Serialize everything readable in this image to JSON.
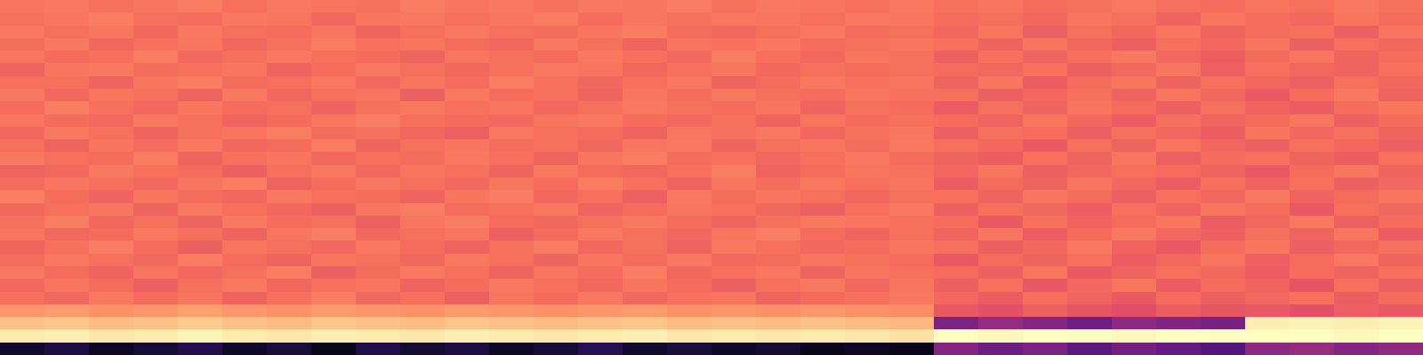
{
  "chart_data": {
    "type": "heatmap",
    "color": "magma",
    "tick_labels": false,
    "xlim": [
      -0.5,
      31.5
    ],
    "ylim": [
      -0.5,
      27.5
    ],
    "zlim": [
      0,
      1
    ],
    "z": [
      [
        0.08,
        0.12,
        0.06,
        0.1,
        0.14,
        0.07,
        0.11,
        0.05,
        0.13,
        0.09,
        0.12,
        0.06,
        0.1,
        0.15,
        0.08,
        0.11,
        0.07,
        0.09,
        0.05,
        0.06,
        0.04,
        0.38,
        0.32,
        0.36,
        0.28,
        0.34,
        0.3,
        0.26,
        0.4,
        0.42,
        0.38,
        0.41
      ],
      [
        0.96,
        0.97,
        0.95,
        0.96,
        0.98,
        0.96,
        0.95,
        0.97,
        0.96,
        0.95,
        0.97,
        0.96,
        0.95,
        0.96,
        0.97,
        0.95,
        0.96,
        0.95,
        0.96,
        0.95,
        0.94,
        1.0,
        0.99,
        1.0,
        1.0,
        0.99,
        1.0,
        1.0,
        1.0,
        1.0,
        0.99,
        1.0
      ],
      [
        0.87,
        0.88,
        0.86,
        0.87,
        0.89,
        0.87,
        0.86,
        0.88,
        0.87,
        0.86,
        0.88,
        0.87,
        0.86,
        0.87,
        0.88,
        0.86,
        0.87,
        0.86,
        0.87,
        0.86,
        0.85,
        0.36,
        0.42,
        0.38,
        0.33,
        0.4,
        0.37,
        0.35,
        0.97,
        0.98,
        0.97,
        0.98
      ],
      [
        0.78,
        0.79,
        0.77,
        0.78,
        0.8,
        0.78,
        0.77,
        0.79,
        0.78,
        0.77,
        0.79,
        0.78,
        0.77,
        0.78,
        0.79,
        0.77,
        0.78,
        0.77,
        0.78,
        0.77,
        0.76,
        0.64,
        0.62,
        0.66,
        0.63,
        0.61,
        0.65,
        0.63,
        0.64,
        0.62,
        0.66,
        0.64
      ],
      [
        0.7,
        0.68,
        0.72,
        0.69,
        0.71,
        0.67,
        0.7,
        0.73,
        0.68,
        0.7,
        0.66,
        0.71,
        0.69,
        0.72,
        0.68,
        0.7,
        0.71,
        0.67,
        0.69,
        0.7,
        0.72,
        0.68,
        0.65,
        0.7,
        0.67,
        0.64,
        0.69,
        0.66,
        0.68,
        0.7,
        0.65,
        0.69
      ],
      [
        0.68,
        0.71,
        0.69,
        0.66,
        0.7,
        0.72,
        0.68,
        0.7,
        0.71,
        0.67,
        0.69,
        0.72,
        0.7,
        0.68,
        0.71,
        0.69,
        0.66,
        0.7,
        0.72,
        0.68,
        0.71,
        0.66,
        0.7,
        0.64,
        0.68,
        0.71,
        0.65,
        0.69,
        0.67,
        0.63,
        0.7,
        0.66
      ],
      [
        0.72,
        0.69,
        0.67,
        0.71,
        0.68,
        0.7,
        0.73,
        0.66,
        0.69,
        0.72,
        0.7,
        0.67,
        0.71,
        0.69,
        0.73,
        0.68,
        0.7,
        0.72,
        0.67,
        0.71,
        0.7,
        0.69,
        0.66,
        0.71,
        0.64,
        0.67,
        0.7,
        0.68,
        0.65,
        0.69,
        0.67,
        0.7
      ],
      [
        0.69,
        0.72,
        0.7,
        0.68,
        0.73,
        0.69,
        0.67,
        0.71,
        0.7,
        0.68,
        0.72,
        0.7,
        0.67,
        0.71,
        0.69,
        0.72,
        0.68,
        0.69,
        0.71,
        0.7,
        0.69,
        0.64,
        0.69,
        0.67,
        0.7,
        0.65,
        0.68,
        0.71,
        0.66,
        0.69,
        0.72,
        0.67
      ],
      [
        0.67,
        0.7,
        0.73,
        0.69,
        0.66,
        0.71,
        0.7,
        0.68,
        0.72,
        0.69,
        0.67,
        0.7,
        0.73,
        0.68,
        0.7,
        0.67,
        0.72,
        0.7,
        0.68,
        0.69,
        0.71,
        0.7,
        0.66,
        0.68,
        0.72,
        0.67,
        0.64,
        0.69,
        0.71,
        0.66,
        0.68,
        0.7
      ],
      [
        0.71,
        0.68,
        0.69,
        0.72,
        0.7,
        0.67,
        0.71,
        0.73,
        0.68,
        0.7,
        0.71,
        0.66,
        0.69,
        0.72,
        0.7,
        0.68,
        0.71,
        0.73,
        0.69,
        0.67,
        0.7,
        0.67,
        0.71,
        0.65,
        0.69,
        0.72,
        0.68,
        0.66,
        0.7,
        0.67,
        0.71,
        0.65
      ],
      [
        0.7,
        0.73,
        0.68,
        0.7,
        0.67,
        0.72,
        0.69,
        0.7,
        0.66,
        0.71,
        0.73,
        0.69,
        0.68,
        0.7,
        0.72,
        0.69,
        0.67,
        0.7,
        0.72,
        0.71,
        0.7,
        0.69,
        0.64,
        0.7,
        0.67,
        0.69,
        0.71,
        0.65,
        0.68,
        0.72,
        0.66,
        0.69
      ],
      [
        0.68,
        0.7,
        0.71,
        0.67,
        0.72,
        0.7,
        0.68,
        0.66,
        0.71,
        0.73,
        0.69,
        0.7,
        0.72,
        0.67,
        0.69,
        0.71,
        0.7,
        0.68,
        0.66,
        0.7,
        0.72,
        0.66,
        0.7,
        0.68,
        0.65,
        0.7,
        0.67,
        0.71,
        0.69,
        0.64,
        0.7,
        0.68
      ],
      [
        0.73,
        0.69,
        0.67,
        0.71,
        0.69,
        0.68,
        0.72,
        0.7,
        0.69,
        0.67,
        0.71,
        0.73,
        0.68,
        0.7,
        0.66,
        0.72,
        0.69,
        0.71,
        0.7,
        0.68,
        0.7,
        0.7,
        0.67,
        0.71,
        0.69,
        0.66,
        0.7,
        0.68,
        0.72,
        0.67,
        0.69,
        0.71
      ],
      [
        0.69,
        0.71,
        0.7,
        0.68,
        0.71,
        0.73,
        0.67,
        0.69,
        0.72,
        0.7,
        0.68,
        0.71,
        0.69,
        0.73,
        0.7,
        0.67,
        0.71,
        0.69,
        0.72,
        0.7,
        0.71,
        0.65,
        0.69,
        0.67,
        0.71,
        0.68,
        0.65,
        0.7,
        0.67,
        0.7,
        0.66,
        0.68
      ],
      [
        0.67,
        0.68,
        0.72,
        0.7,
        0.69,
        0.66,
        0.7,
        0.72,
        0.68,
        0.71,
        0.7,
        0.67,
        0.72,
        0.69,
        0.68,
        0.7,
        0.73,
        0.67,
        0.69,
        0.71,
        0.7,
        0.68,
        0.71,
        0.66,
        0.68,
        0.7,
        0.69,
        0.67,
        0.64,
        0.69,
        0.71,
        0.67
      ],
      [
        0.72,
        0.7,
        0.69,
        0.73,
        0.67,
        0.7,
        0.71,
        0.68,
        0.7,
        0.69,
        0.72,
        0.7,
        0.67,
        0.71,
        0.73,
        0.69,
        0.7,
        0.68,
        0.7,
        0.72,
        0.69,
        0.67,
        0.65,
        0.7,
        0.67,
        0.71,
        0.66,
        0.69,
        0.7,
        0.67,
        0.65,
        0.7
      ],
      [
        0.7,
        0.67,
        0.71,
        0.69,
        0.72,
        0.68,
        0.69,
        0.73,
        0.67,
        0.7,
        0.71,
        0.69,
        0.7,
        0.68,
        0.71,
        0.72,
        0.67,
        0.7,
        0.71,
        0.69,
        0.72,
        0.7,
        0.68,
        0.64,
        0.7,
        0.67,
        0.71,
        0.68,
        0.66,
        0.7,
        0.68,
        0.66
      ],
      [
        0.68,
        0.72,
        0.7,
        0.67,
        0.7,
        0.71,
        0.73,
        0.69,
        0.7,
        0.68,
        0.66,
        0.72,
        0.7,
        0.69,
        0.67,
        0.71,
        0.7,
        0.72,
        0.68,
        0.7,
        0.71,
        0.66,
        0.7,
        0.69,
        0.66,
        0.7,
        0.68,
        0.65,
        0.71,
        0.68,
        0.7,
        0.67
      ],
      [
        0.71,
        0.69,
        0.68,
        0.72,
        0.7,
        0.67,
        0.69,
        0.71,
        0.73,
        0.7,
        0.69,
        0.68,
        0.71,
        0.72,
        0.69,
        0.68,
        0.7,
        0.67,
        0.71,
        0.69,
        0.7,
        0.69,
        0.67,
        0.71,
        0.68,
        0.65,
        0.7,
        0.67,
        0.69,
        0.71,
        0.66,
        0.69
      ],
      [
        0.69,
        0.73,
        0.7,
        0.68,
        0.71,
        0.69,
        0.7,
        0.67,
        0.7,
        0.72,
        0.7,
        0.71,
        0.68,
        0.7,
        0.72,
        0.7,
        0.69,
        0.71,
        0.67,
        0.7,
        0.69,
        0.65,
        0.7,
        0.67,
        0.71,
        0.69,
        0.66,
        0.7,
        0.67,
        0.65,
        0.69,
        0.71
      ],
      [
        0.72,
        0.68,
        0.71,
        0.7,
        0.67,
        0.72,
        0.68,
        0.7,
        0.71,
        0.66,
        0.72,
        0.69,
        0.7,
        0.67,
        0.71,
        0.69,
        0.72,
        0.7,
        0.69,
        0.71,
        0.7,
        0.7,
        0.66,
        0.68,
        0.7,
        0.67,
        0.71,
        0.68,
        0.64,
        0.69,
        0.72,
        0.67
      ],
      [
        0.7,
        0.7,
        0.67,
        0.71,
        0.73,
        0.69,
        0.7,
        0.72,
        0.68,
        0.71,
        0.69,
        0.73,
        0.7,
        0.68,
        0.7,
        0.72,
        0.67,
        0.69,
        0.72,
        0.7,
        0.71,
        0.67,
        0.71,
        0.65,
        0.69,
        0.71,
        0.67,
        0.7,
        0.68,
        0.66,
        0.7,
        0.68
      ],
      [
        0.67,
        0.71,
        0.72,
        0.69,
        0.7,
        0.71,
        0.67,
        0.69,
        0.72,
        0.7,
        0.68,
        0.7,
        0.72,
        0.71,
        0.68,
        0.7,
        0.71,
        0.68,
        0.7,
        0.69,
        0.7,
        0.69,
        0.68,
        0.7,
        0.66,
        0.68,
        0.71,
        0.66,
        0.7,
        0.68,
        0.67,
        0.7
      ],
      [
        0.71,
        0.69,
        0.7,
        0.73,
        0.68,
        0.7,
        0.72,
        0.7,
        0.69,
        0.67,
        0.71,
        0.7,
        0.69,
        0.72,
        0.7,
        0.68,
        0.73,
        0.7,
        0.68,
        0.71,
        0.7,
        0.66,
        0.7,
        0.67,
        0.7,
        0.72,
        0.68,
        0.65,
        0.69,
        0.71,
        0.67,
        0.69
      ],
      [
        0.69,
        0.72,
        0.68,
        0.7,
        0.71,
        0.68,
        0.7,
        0.73,
        0.7,
        0.71,
        0.69,
        0.68,
        0.72,
        0.7,
        0.67,
        0.71,
        0.7,
        0.72,
        0.69,
        0.7,
        0.71,
        0.7,
        0.67,
        0.71,
        0.68,
        0.66,
        0.7,
        0.68,
        0.71,
        0.66,
        0.7,
        0.68
      ],
      [
        0.72,
        0.7,
        0.71,
        0.68,
        0.72,
        0.7,
        0.69,
        0.71,
        0.67,
        0.7,
        0.72,
        0.7,
        0.69,
        0.71,
        0.73,
        0.69,
        0.68,
        0.7,
        0.72,
        0.69,
        0.7,
        0.68,
        0.71,
        0.66,
        0.7,
        0.68,
        0.71,
        0.67,
        0.69,
        0.7,
        0.66,
        0.71
      ],
      [
        0.7,
        0.71,
        0.73,
        0.7,
        0.69,
        0.72,
        0.71,
        0.68,
        0.71,
        0.72,
        0.7,
        0.71,
        0.73,
        0.69,
        0.71,
        0.7,
        0.72,
        0.71,
        0.7,
        0.72,
        0.71,
        0.69,
        0.7,
        0.68,
        0.71,
        0.7,
        0.67,
        0.71,
        0.69,
        0.68,
        0.71,
        0.69
      ],
      [
        0.71,
        0.72,
        0.7,
        0.71,
        0.73,
        0.7,
        0.72,
        0.71,
        0.7,
        0.73,
        0.71,
        0.72,
        0.7,
        0.72,
        0.71,
        0.73,
        0.7,
        0.72,
        0.71,
        0.7,
        0.72,
        0.7,
        0.71,
        0.69,
        0.7,
        0.72,
        0.7,
        0.69,
        0.71,
        0.7,
        0.72,
        0.7
      ]
    ]
  }
}
